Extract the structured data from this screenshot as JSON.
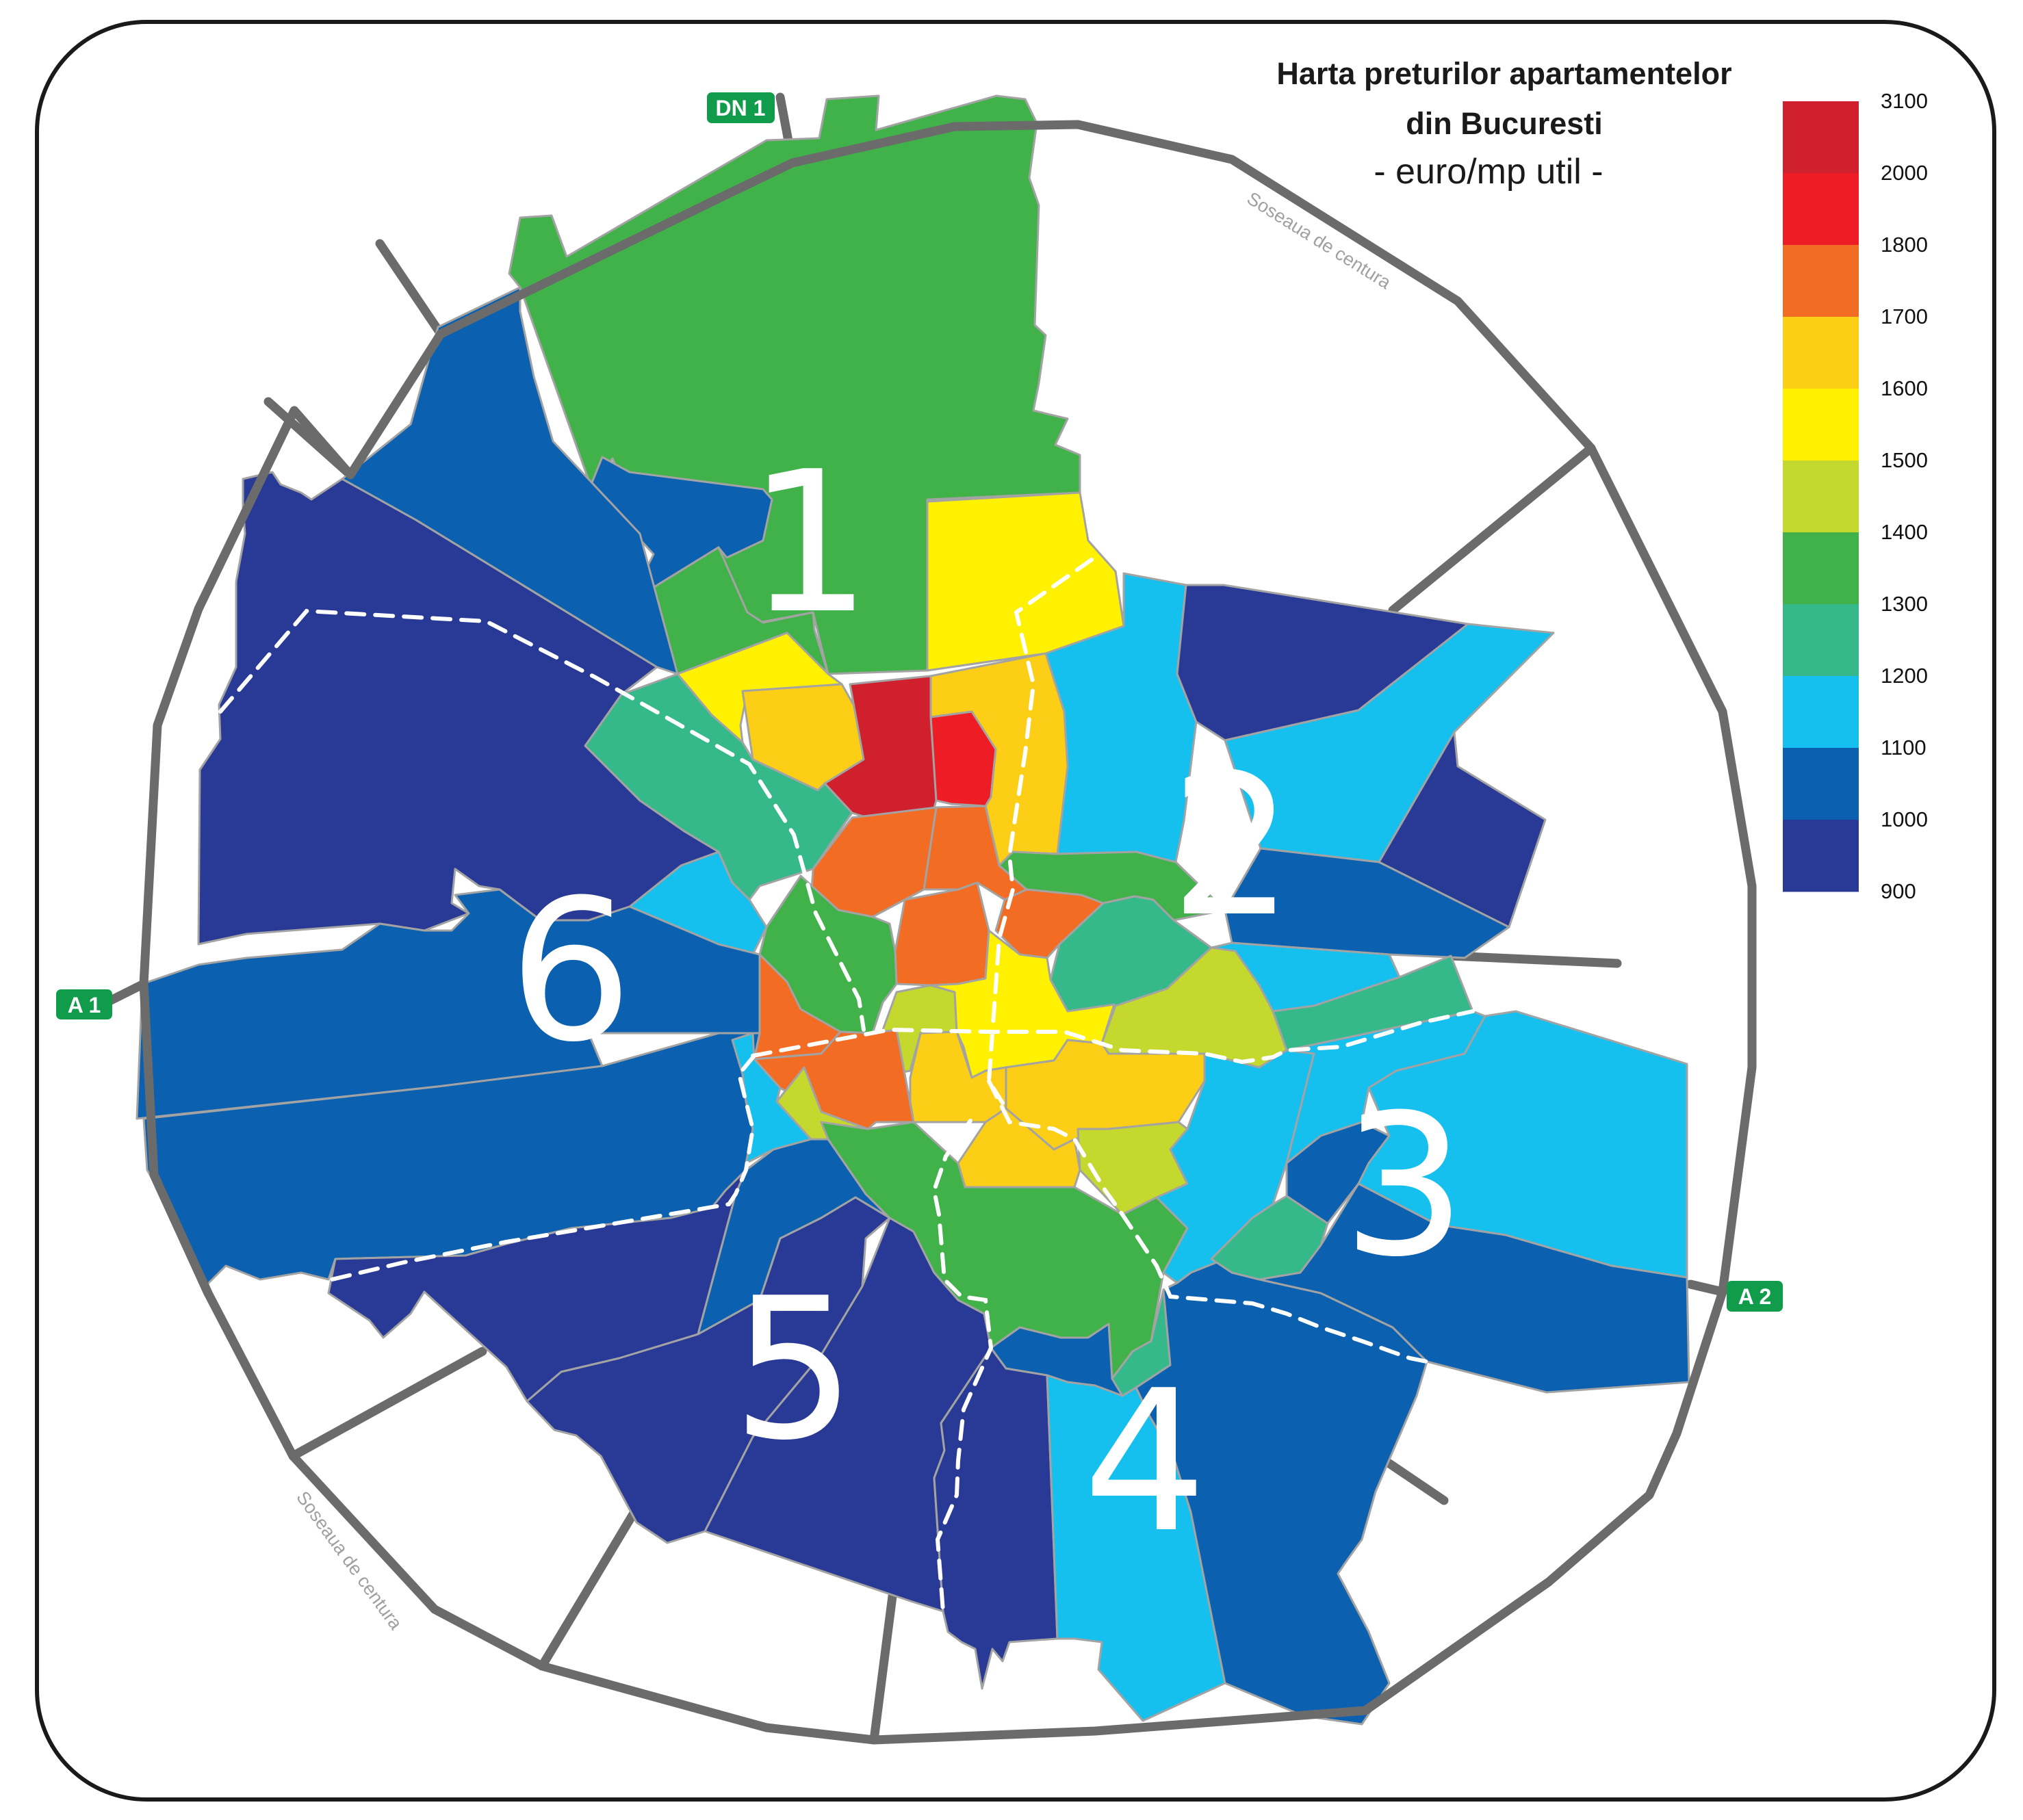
{
  "title": {
    "line1": "Harta preturilor apartamentelor",
    "line2": "din Bucuresti",
    "unit": "- euro/mp util -"
  },
  "legend": {
    "labels": [
      "3100",
      "2000",
      "1800",
      "1700",
      "1600",
      "1500",
      "1400",
      "1300",
      "1200",
      "1100",
      "1000",
      "900"
    ],
    "colors": [
      "#d0202e",
      "#ee1c25",
      "#f26c24",
      "#fccf16",
      "#fff100",
      "#c4d82e",
      "#41b14a",
      "#36b98a",
      "#15c0ef",
      "#0b60b0",
      "#283a95"
    ]
  },
  "ring_road": {
    "label_top": "Soseaua de centura",
    "label_bottom": "Soseaua de centura"
  },
  "road_signs": {
    "dn1": "DN 1",
    "a1": "A 1",
    "a2": "A 2",
    "color": "#119c4b"
  },
  "sectors": [
    "1",
    "2",
    "3",
    "4",
    "5",
    "6"
  ]
}
